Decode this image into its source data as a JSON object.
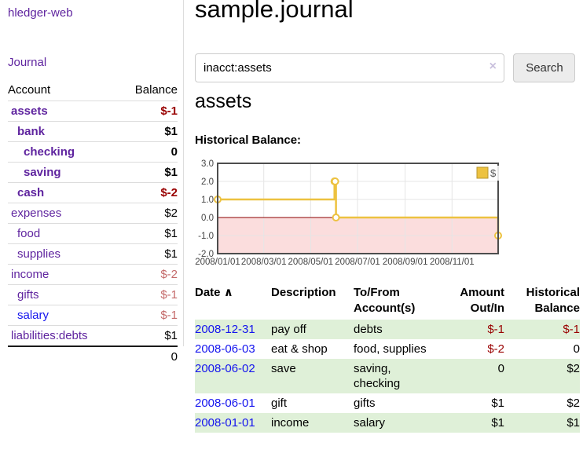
{
  "app": {
    "title": "hledger-web"
  },
  "colors": {
    "link_purple": "#5f249f",
    "link_blue": "#1414ee",
    "negative": "#990000",
    "negative_soft": "#c46a6a",
    "row_green": "#dff0d8",
    "clear_icon": "#c9c0dd",
    "chart_line": "#edc240",
    "chart_marker_fill": "#ffffff",
    "chart_negative_fill": "#fbdddd",
    "chart_zero_line": "#8b0000",
    "chart_border": "#4d4d4d",
    "chart_grid": "#e5e5e5",
    "chart_tick_text": "#444444"
  },
  "sidebar": {
    "journal_label": "Journal",
    "accounts": {
      "header_account": "Account",
      "header_balance": "Balance",
      "rows": [
        {
          "account": "assets",
          "balance": "$-1",
          "depth": 1,
          "bold": true,
          "balance_style": "negative"
        },
        {
          "account": "bank",
          "balance": "$1",
          "depth": 2,
          "bold": true,
          "balance_style": ""
        },
        {
          "account": "checking",
          "balance": "0",
          "depth": 3,
          "bold": true,
          "balance_style": ""
        },
        {
          "account": "saving",
          "balance": "$1",
          "depth": 3,
          "bold": true,
          "balance_style": ""
        },
        {
          "account": "cash",
          "balance": "$-2",
          "depth": 2,
          "bold": true,
          "balance_style": "negative"
        },
        {
          "account": "expenses",
          "balance": "$2",
          "depth": 1,
          "bold": false,
          "balance_style": ""
        },
        {
          "account": "food",
          "balance": "$1",
          "depth": 2,
          "bold": false,
          "balance_style": ""
        },
        {
          "account": "supplies",
          "balance": "$1",
          "depth": 2,
          "bold": false,
          "balance_style": ""
        },
        {
          "account": "income",
          "balance": "$-2",
          "depth": 1,
          "bold": false,
          "balance_style": "negative-soft"
        },
        {
          "account": "gifts",
          "balance": "$-1",
          "depth": 2,
          "bold": false,
          "balance_style": "negative-soft"
        },
        {
          "account": "salary",
          "balance": "$-1",
          "depth": 2,
          "bold": false,
          "balance_style": "negative-soft",
          "link_style": "blue"
        },
        {
          "account": "liabilities:debts",
          "balance": "$1",
          "depth": 1,
          "bold": false,
          "balance_style": ""
        }
      ],
      "total": "0"
    }
  },
  "main": {
    "title": "sample.journal",
    "search": {
      "value": "inacct:assets",
      "clear_icon": "×",
      "button_label": "Search",
      "help_label": "?"
    },
    "account_heading": "assets",
    "chart_heading": "Historical Balance:"
  },
  "chart_data": {
    "type": "line",
    "step": true,
    "title": "Historical Balance",
    "x_type": "date",
    "xlim": [
      "2008-01-01",
      "2008-12-31"
    ],
    "ylim": [
      -2.0,
      3.0
    ],
    "yticks": [
      3.0,
      2.0,
      1.0,
      0.0,
      -1.0,
      -2.0
    ],
    "xticks": [
      {
        "date": "2008-01-01",
        "label": "2008/01/01"
      },
      {
        "date": "2008-03-01",
        "label": "2008/03/01"
      },
      {
        "date": "2008-05-01",
        "label": "2008/05/01"
      },
      {
        "date": "2008-07-01",
        "label": "2008/07/01"
      },
      {
        "date": "2008-09-01",
        "label": "2008/09/01"
      },
      {
        "date": "2008-11-01",
        "label": "2008/11/01"
      }
    ],
    "grid": true,
    "negative_region_shaded": true,
    "legend": {
      "position": "top-right",
      "entries": [
        {
          "label": "$"
        }
      ]
    },
    "series": [
      {
        "name": "$",
        "points": [
          [
            "2008-01-01",
            1
          ],
          [
            "2008-06-01",
            2
          ],
          [
            "2008-06-02",
            2
          ],
          [
            "2008-06-03",
            0
          ],
          [
            "2008-12-31",
            -1
          ]
        ]
      }
    ]
  },
  "register": {
    "headers": {
      "date": "Date",
      "sort_icon": "∧",
      "description": "Description",
      "accounts": "To/From Account(s)",
      "amount": "Amount Out/In",
      "balance": "Historical Balance"
    },
    "rows": [
      {
        "date": "2008-12-31",
        "description": "pay off",
        "accounts": "debts",
        "amount": "$-1",
        "amount_negative": true,
        "balance": "$-1",
        "balance_negative": true
      },
      {
        "date": "2008-06-03",
        "description": "eat & shop",
        "accounts": "food, supplies",
        "amount": "$-2",
        "amount_negative": true,
        "balance": "0",
        "balance_negative": false
      },
      {
        "date": "2008-06-02",
        "description": "save",
        "accounts": "saving, checking",
        "amount": "0",
        "amount_negative": false,
        "balance": "$2",
        "balance_negative": false
      },
      {
        "date": "2008-06-01",
        "description": "gift",
        "accounts": "gifts",
        "amount": "$1",
        "amount_negative": false,
        "balance": "$2",
        "balance_negative": false
      },
      {
        "date": "2008-01-01",
        "description": "income",
        "accounts": "salary",
        "amount": "$1",
        "amount_negative": false,
        "balance": "$1",
        "balance_negative": false
      }
    ]
  }
}
